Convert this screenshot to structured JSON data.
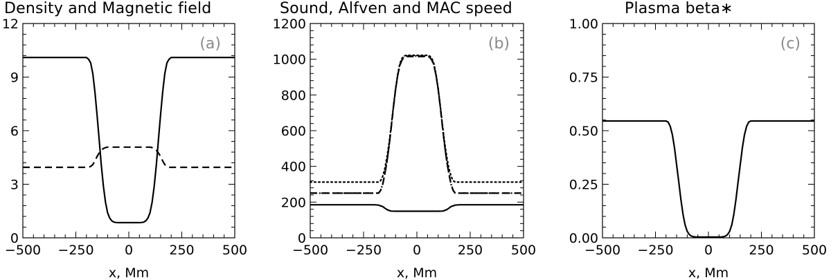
{
  "chart_data": [
    {
      "type": "line",
      "title": "Density and Magnetic field",
      "panel_label": "(a)",
      "xlabel": "x, Mm",
      "ylabel": "",
      "xlim": [
        -500,
        500
      ],
      "ylim": [
        0,
        12
      ],
      "xticks": [
        -500,
        -250,
        0,
        250,
        500
      ],
      "yticks": [
        0,
        3,
        6,
        9,
        12
      ],
      "series": [
        {
          "style": "solid",
          "color": "#000000",
          "x": [
            -500,
            -200,
            -190,
            -180,
            -170,
            -160,
            -150,
            -140,
            -130,
            -120,
            -110,
            -100,
            -90,
            -80,
            -70,
            -60,
            -50,
            0,
            50,
            60,
            70,
            80,
            90,
            100,
            110,
            120,
            130,
            140,
            150,
            160,
            170,
            180,
            190,
            200,
            500
          ],
          "y": [
            10.1,
            10.1,
            10.0,
            9.8,
            9.2,
            8.2,
            6.9,
            5.5,
            4.1,
            2.9,
            2.0,
            1.4,
            1.1,
            0.95,
            0.88,
            0.86,
            0.85,
            0.85,
            0.85,
            0.86,
            0.88,
            0.95,
            1.1,
            1.4,
            2.0,
            2.9,
            4.1,
            5.5,
            6.9,
            8.2,
            9.2,
            9.8,
            10.0,
            10.1,
            10.1
          ]
        },
        {
          "style": "dashed",
          "color": "#000000",
          "x": [
            -500,
            -190,
            -180,
            -170,
            -160,
            -150,
            -140,
            -130,
            -120,
            -110,
            -100,
            0,
            100,
            110,
            120,
            130,
            140,
            150,
            160,
            170,
            180,
            190,
            500
          ],
          "y": [
            3.95,
            3.95,
            4.0,
            4.1,
            4.3,
            4.55,
            4.75,
            4.9,
            5.0,
            5.05,
            5.08,
            5.08,
            5.08,
            5.05,
            5.0,
            4.9,
            4.75,
            4.55,
            4.3,
            4.1,
            4.0,
            3.95,
            3.95
          ]
        }
      ]
    },
    {
      "type": "line",
      "title": "Sound, Alfven and MAC speed",
      "panel_label": "(b)",
      "xlabel": "x, Mm",
      "ylabel": "",
      "xlim": [
        -500,
        500
      ],
      "ylim": [
        0,
        1200
      ],
      "xticks": [
        -500,
        -250,
        0,
        250,
        500
      ],
      "yticks": [
        0,
        200,
        400,
        600,
        800,
        1000,
        1200
      ],
      "series": [
        {
          "style": "solid",
          "color": "#000000",
          "x": [
            -500,
            -200,
            -180,
            -160,
            -150,
            -140,
            -130,
            -120,
            -100,
            0,
            100,
            120,
            130,
            140,
            150,
            160,
            180,
            200,
            500
          ],
          "y": [
            185,
            185,
            183,
            175,
            166,
            158,
            153,
            150,
            149,
            149,
            149,
            150,
            153,
            158,
            166,
            175,
            183,
            185,
            185
          ]
        },
        {
          "style": "dashed",
          "color": "#000000",
          "x": [
            -500,
            -180,
            -170,
            -160,
            -150,
            -140,
            -130,
            -120,
            -110,
            -100,
            -90,
            -80,
            -70,
            -60,
            -50,
            0,
            50,
            60,
            70,
            80,
            90,
            100,
            110,
            120,
            130,
            140,
            150,
            160,
            170,
            180,
            500
          ],
          "y": [
            250,
            250,
            265,
            300,
            360,
            430,
            520,
            620,
            730,
            830,
            910,
            965,
            995,
            1010,
            1015,
            1015,
            1015,
            1010,
            995,
            965,
            910,
            830,
            730,
            620,
            520,
            430,
            360,
            300,
            265,
            250,
            250
          ]
        },
        {
          "style": "dotted",
          "color": "#000000",
          "x": [
            -500,
            -180,
            -170,
            -160,
            -150,
            -140,
            -130,
            -120,
            -110,
            -100,
            -90,
            -80,
            -70,
            -60,
            -50,
            0,
            50,
            60,
            70,
            80,
            90,
            100,
            110,
            120,
            130,
            140,
            150,
            160,
            170,
            180,
            500
          ],
          "y": [
            312,
            312,
            320,
            345,
            390,
            455,
            535,
            630,
            735,
            835,
            915,
            975,
            1005,
            1018,
            1022,
            1022,
            1022,
            1018,
            1005,
            975,
            915,
            835,
            735,
            630,
            535,
            455,
            390,
            345,
            320,
            312,
            312
          ]
        },
        {
          "style": "dashdot",
          "color": "#000000",
          "x": [
            -500,
            -180,
            -170,
            -160,
            -150,
            -140,
            -130,
            -120,
            -110,
            -100,
            -90,
            -80,
            -70,
            -60,
            -50,
            0,
            50,
            60,
            70,
            80,
            90,
            100,
            110,
            120,
            130,
            140,
            150,
            160,
            170,
            180,
            500
          ],
          "y": [
            250,
            250,
            265,
            300,
            360,
            430,
            520,
            620,
            730,
            830,
            910,
            968,
            1000,
            1014,
            1018,
            1018,
            1018,
            1014,
            1000,
            968,
            910,
            830,
            730,
            620,
            520,
            430,
            360,
            300,
            265,
            250,
            250
          ],
          "x_window": [
            -180,
            180
          ]
        }
      ]
    },
    {
      "type": "line",
      "title": "Plasma beta∗",
      "panel_label": "(c)",
      "xlabel": "x, Mm",
      "ylabel": "",
      "xlim": [
        -500,
        500
      ],
      "ylim": [
        0,
        1.0
      ],
      "xticks": [
        -500,
        -250,
        0,
        250,
        500
      ],
      "yticks": [
        0.0,
        0.25,
        0.5,
        0.75,
        1.0
      ],
      "ytick_labels": [
        "0.00",
        "0.25",
        "0.50",
        "0.75",
        "1.00"
      ],
      "series": [
        {
          "style": "solid",
          "color": "#000000",
          "x": [
            -500,
            -200,
            -190,
            -180,
            -170,
            -160,
            -150,
            -140,
            -130,
            -120,
            -110,
            -100,
            -90,
            -80,
            -70,
            -60,
            -50,
            0,
            50,
            60,
            70,
            80,
            90,
            100,
            110,
            120,
            130,
            140,
            150,
            160,
            170,
            180,
            190,
            200,
            500
          ],
          "y": [
            0.545,
            0.545,
            0.54,
            0.52,
            0.48,
            0.42,
            0.34,
            0.26,
            0.18,
            0.11,
            0.06,
            0.03,
            0.015,
            0.008,
            0.005,
            0.004,
            0.004,
            0.004,
            0.004,
            0.004,
            0.005,
            0.008,
            0.015,
            0.03,
            0.06,
            0.11,
            0.18,
            0.26,
            0.34,
            0.42,
            0.48,
            0.52,
            0.54,
            0.545,
            0.545
          ]
        }
      ]
    }
  ]
}
